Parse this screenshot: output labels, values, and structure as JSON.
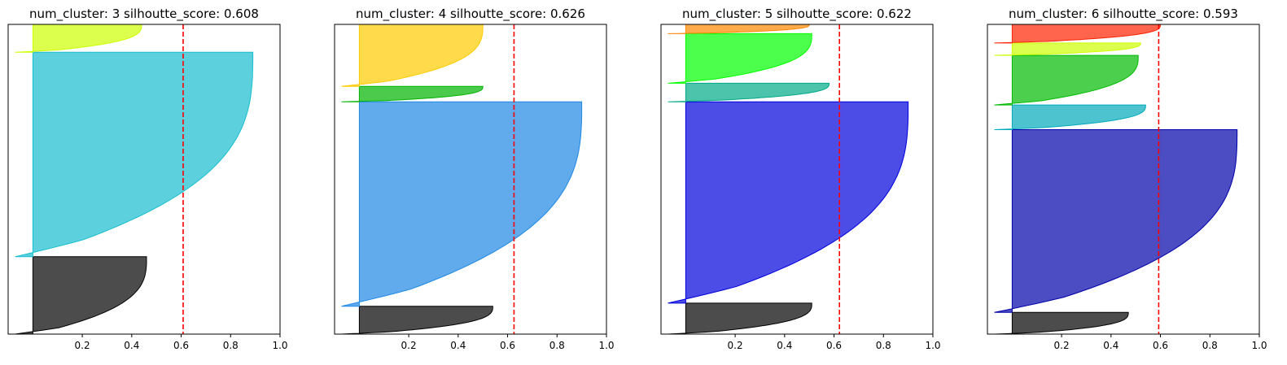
{
  "chart_data": [
    {
      "type": "area",
      "title": "num_cluster: 3 silhoutte_score: 0.608",
      "xlim": [
        -0.1,
        1.0
      ],
      "xticks": [
        0.2,
        0.4,
        0.6,
        0.8,
        1.0
      ],
      "xticklabels": [
        "0.2",
        "0.4",
        "0.6",
        "0.8",
        "1.0"
      ],
      "yticks_visible": false,
      "silhouette_score": 0.608,
      "clusters": [
        {
          "cluster": 0,
          "color": "#000000",
          "max_value": 0.46,
          "size_fraction": 0.25
        },
        {
          "cluster": 1,
          "color": "#17becf",
          "max_value": 0.89,
          "size_fraction": 0.66
        },
        {
          "cluster": 2,
          "color": "#ccff00",
          "max_value": 0.44,
          "size_fraction": 0.09
        }
      ]
    },
    {
      "type": "area",
      "title": "num_cluster: 4 silhoutte_score: 0.626",
      "xlim": [
        -0.1,
        1.0
      ],
      "xticks": [
        0.2,
        0.4,
        0.6,
        0.8,
        1.0
      ],
      "xticklabels": [
        "0.2",
        "0.4",
        "0.6",
        "0.8",
        "1.0"
      ],
      "yticks_visible": false,
      "silhouette_score": 0.626,
      "clusters": [
        {
          "cluster": 0,
          "color": "#000000",
          "max_value": 0.54,
          "size_fraction": 0.09
        },
        {
          "cluster": 1,
          "color": "#1e88e5",
          "max_value": 0.9,
          "size_fraction": 0.66
        },
        {
          "cluster": 2,
          "color": "#00b300",
          "max_value": 0.5,
          "size_fraction": 0.05
        },
        {
          "cluster": 3,
          "color": "#ffcc00",
          "max_value": 0.5,
          "size_fraction": 0.2
        }
      ]
    },
    {
      "type": "area",
      "title": "num_cluster: 5 silhoutte_score: 0.622",
      "xlim": [
        -0.1,
        1.0
      ],
      "xticks": [
        0.2,
        0.4,
        0.6,
        0.8,
        1.0
      ],
      "xticklabels": [
        "0.2",
        "0.4",
        "0.6",
        "0.8",
        "1.0"
      ],
      "yticks_visible": false,
      "silhouette_score": 0.622,
      "clusters": [
        {
          "cluster": 0,
          "color": "#000000",
          "max_value": 0.51,
          "size_fraction": 0.1
        },
        {
          "cluster": 1,
          "color": "#0000dd",
          "max_value": 0.9,
          "size_fraction": 0.65
        },
        {
          "cluster": 2,
          "color": "#00aa88",
          "max_value": 0.58,
          "size_fraction": 0.06
        },
        {
          "cluster": 3,
          "color": "#00ff00",
          "max_value": 0.51,
          "size_fraction": 0.16
        },
        {
          "cluster": 4,
          "color": "#ff8800",
          "max_value": 0.5,
          "size_fraction": 0.03
        }
      ]
    },
    {
      "type": "area",
      "title": "num_cluster: 6 silhoutte_score: 0.593",
      "xlim": [
        -0.1,
        1.0
      ],
      "xticks": [
        0.2,
        0.4,
        0.6,
        0.8,
        1.0
      ],
      "xticklabels": [
        "0.2",
        "0.4",
        "0.6",
        "0.8",
        "1.0"
      ],
      "yticks_visible": false,
      "silhouette_score": 0.593,
      "clusters": [
        {
          "cluster": 0,
          "color": "#000000",
          "max_value": 0.47,
          "size_fraction": 0.07
        },
        {
          "cluster": 1,
          "color": "#0000aa",
          "max_value": 0.91,
          "size_fraction": 0.59
        },
        {
          "cluster": 2,
          "color": "#00aabb",
          "max_value": 0.54,
          "size_fraction": 0.08
        },
        {
          "cluster": 3,
          "color": "#00bb00",
          "max_value": 0.51,
          "size_fraction": 0.16
        },
        {
          "cluster": 4,
          "color": "#ccff00",
          "max_value": 0.52,
          "size_fraction": 0.04
        },
        {
          "cluster": 5,
          "color": "#ff2200",
          "max_value": 0.6,
          "size_fraction": 0.06
        }
      ]
    }
  ]
}
